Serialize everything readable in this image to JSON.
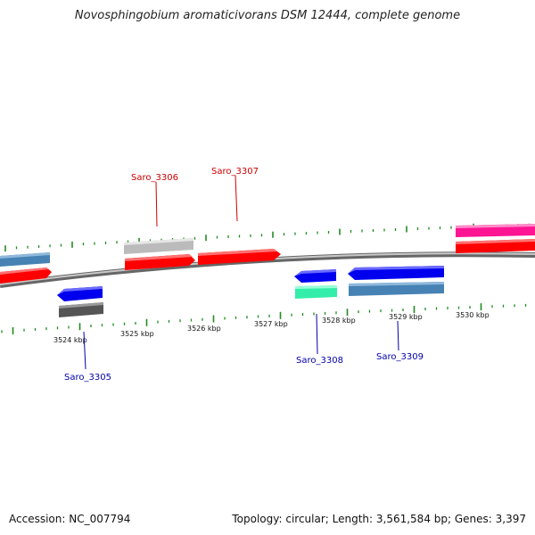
{
  "title": "Novosphingobium aromaticivorans DSM 12444, complete genome",
  "accession": "Accession: NC_007794",
  "summary": "Topology: circular; Length: 3,561,584 bp; Genes: 3,397",
  "scale_labels": [
    "3524 kbp",
    "3525 kbp",
    "3526 kbp",
    "3527 kbp",
    "3528 kbp",
    "3529 kbp",
    "3530 kbp"
  ],
  "gene_labels": [
    {
      "name": "Saro_3306",
      "color": "#cc0000"
    },
    {
      "name": "Saro_3307",
      "color": "#cc0000"
    },
    {
      "name": "Saro_3305",
      "color": "#0000aa"
    },
    {
      "name": "Saro_3308",
      "color": "#0000aa"
    },
    {
      "name": "Saro_3309",
      "color": "#0000aa"
    }
  ],
  "colors": {
    "backbone": "#888888",
    "tick": "#228b22",
    "red_gene": "#ff0000",
    "blue_gene": "#0000ee",
    "steel_gene": "#4682b4",
    "gray_gene": "#bbbbbb",
    "dark_gene": "#555555",
    "teal_gene": "#33eeaa",
    "pink_gene": "#ff1493"
  }
}
